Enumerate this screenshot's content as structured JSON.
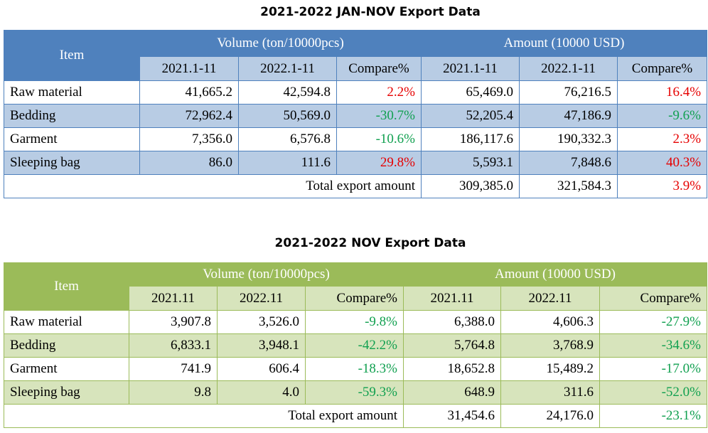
{
  "table1": {
    "title": "2021-2022 JAN-NOV Export Data",
    "item_header": "Item",
    "volume_header": "Volume (ton/10000pcs)",
    "amount_header": "Amount (10000 USD)",
    "sub_headers": [
      "2021.1-11",
      "2022.1-11",
      "Compare%",
      "2021.1-11",
      "2022.1-11",
      "Compare%"
    ],
    "rows": [
      {
        "item": "Raw material",
        "v1": "41,665.2",
        "v2": "42,594.8",
        "vc": "2.2%",
        "a1": "65,469.0",
        "a2": "76,216.5",
        "ac": "16.4%"
      },
      {
        "item": "Bedding",
        "v1": "72,962.4",
        "v2": "50,569.0",
        "vc": "-30.7%",
        "a1": "52,205.4",
        "a2": "47,186.9",
        "ac": "-9.6%"
      },
      {
        "item": "Garment",
        "v1": "7,356.0",
        "v2": "6,576.8",
        "vc": "-10.6%",
        "a1": "186,117.6",
        "a2": "190,332.3",
        "ac": "2.3%"
      },
      {
        "item": "Sleeping bag",
        "v1": "86.0",
        "v2": "111.6",
        "vc": "29.8%",
        "a1": "5,593.1",
        "a2": "7,848.6",
        "ac": "40.3%"
      }
    ],
    "total": {
      "label": "Total  export  amount",
      "a1": "309,385.0",
      "a2": "321,584.3",
      "ac": "3.9%"
    }
  },
  "table2": {
    "title": "2021-2022 NOV Export Data",
    "item_header": "Item",
    "volume_header": "Volume (ton/10000pcs)",
    "amount_header": "Amount (10000 USD)",
    "sub_headers": [
      "2021.11",
      "2022.11",
      "Compare%",
      "2021.11",
      "2022.11",
      "Compare%"
    ],
    "rows": [
      {
        "item": "Raw material",
        "v1": "3,907.8",
        "v2": "3,526.0",
        "vc": "-9.8%",
        "a1": "6,388.0",
        "a2": "4,606.3",
        "ac": "-27.9%"
      },
      {
        "item": "Bedding",
        "v1": "6,833.1",
        "v2": "3,948.1",
        "vc": "-42.2%",
        "a1": "5,764.8",
        "a2": "3,768.9",
        "ac": "-34.6%"
      },
      {
        "item": "Garment",
        "v1": "741.9",
        "v2": "606.4",
        "vc": "-18.3%",
        "a1": "18,652.8",
        "a2": "15,489.2",
        "ac": "-17.0%"
      },
      {
        "item": "Sleeping bag",
        "v1": "9.8",
        "v2": "4.0",
        "vc": "-59.3%",
        "a1": "648.9",
        "a2": "311.6",
        "ac": "-52.0%"
      }
    ],
    "total": {
      "label": "Total export amount",
      "a1": "31,454.6",
      "a2": "24,176.0",
      "ac": "-23.1%"
    }
  },
  "colors": {
    "increase": "#e60000",
    "decrease": "#11a050",
    "table1_header": "#4f81bd",
    "table1_band": "#b8cce4",
    "table2_header": "#9bbb59",
    "table2_band": "#d7e4bc"
  }
}
